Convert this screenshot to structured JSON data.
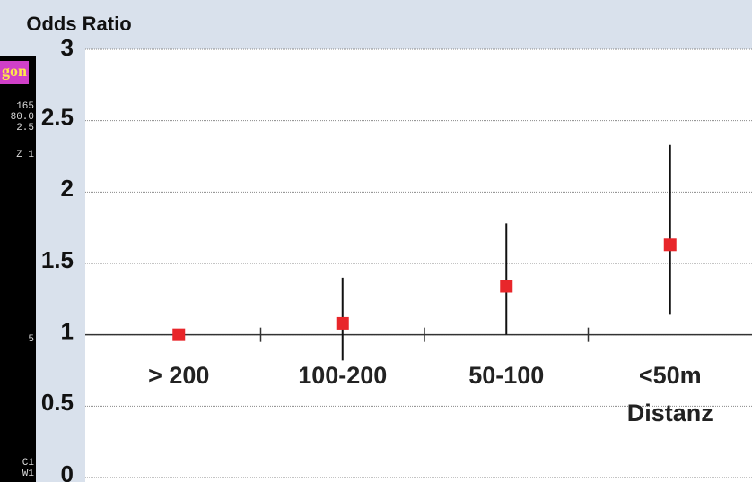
{
  "chart_data": {
    "type": "errorbar",
    "y_label": "Odds Ratio",
    "x_label": "Distanz",
    "categories": [
      "> 200",
      "100-200",
      "50-100",
      "<50m"
    ],
    "series": [
      {
        "color": "#e8262a",
        "values": [
          1,
          1.08,
          1.34,
          1.63
        ],
        "lower": [
          null,
          0.82,
          1.0,
          1.14
        ],
        "upper": [
          null,
          1.4,
          1.78,
          2.33
        ]
      }
    ],
    "ylim": [
      0,
      3
    ],
    "yticks": [
      0,
      0.5,
      1,
      1.5,
      2,
      2.5,
      3
    ],
    "grid": true,
    "baseline": 1
  },
  "sidebar": {
    "label": "gon",
    "lines": [
      "165",
      "80.0",
      "2.5",
      "Z 1",
      "5",
      "C1",
      "W1"
    ]
  }
}
